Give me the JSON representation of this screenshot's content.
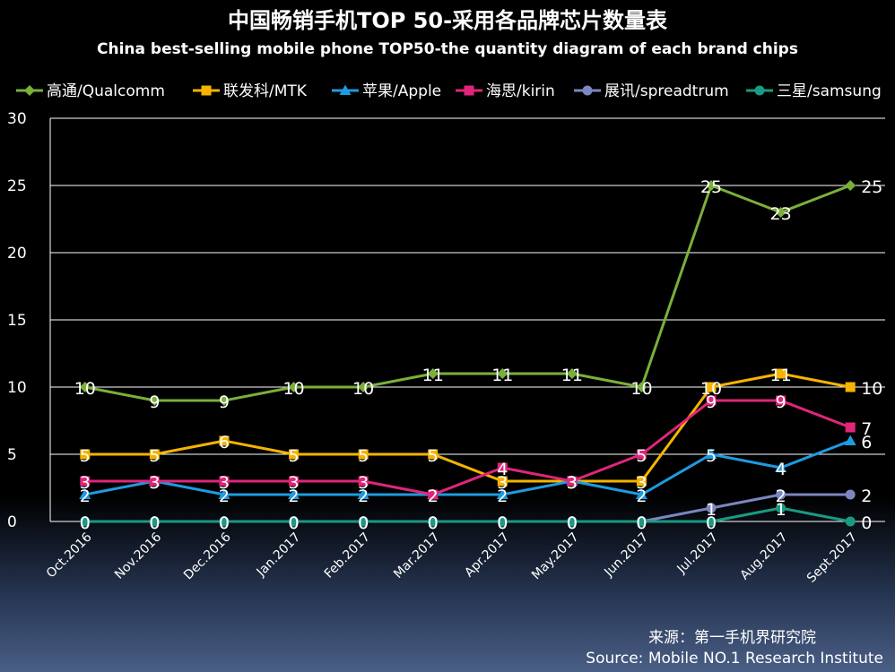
{
  "chart_data": {
    "type": "line",
    "title": "中国畅销手机TOP 50-采用各品牌芯片数量表",
    "subtitle": "China best-selling mobile phone TOP50-the quantity diagram of each brand chips",
    "categories": [
      "Oct.2016",
      "Nov.2016",
      "Dec.2016",
      "Jan.2017",
      "Feb.2017",
      "Mar.2017",
      "Apr.2017",
      "May.2017",
      "Jun.2017",
      "Jul.2017",
      "Aug.2017",
      "Sept.2017"
    ],
    "ylim": [
      0,
      30
    ],
    "yticks": [
      0,
      5,
      10,
      15,
      20,
      25,
      30
    ],
    "grid": true,
    "legend_position": "top",
    "series": [
      {
        "name": "高通/Qualcomm",
        "color": "#7ab03a",
        "marker": "diamond",
        "values": [
          10,
          9,
          9,
          10,
          10,
          11,
          11,
          11,
          10,
          25,
          23,
          25
        ]
      },
      {
        "name": "联发科/MTK",
        "color": "#f5b400",
        "marker": "square",
        "values": [
          5,
          5,
          6,
          5,
          5,
          5,
          3,
          3,
          3,
          10,
          11,
          10
        ]
      },
      {
        "name": "苹果/Apple",
        "color": "#1e9be0",
        "marker": "triangle",
        "values": [
          2,
          3,
          2,
          2,
          2,
          2,
          2,
          3,
          2,
          5,
          4,
          6
        ]
      },
      {
        "name": "海思/kirin",
        "color": "#e0267a",
        "marker": "square",
        "values": [
          3,
          3,
          3,
          3,
          3,
          2,
          4,
          3,
          5,
          9,
          9,
          7
        ]
      },
      {
        "name": "展讯/spreadtrum",
        "color": "#7c86c0",
        "marker": "circle",
        "values": [
          0,
          0,
          0,
          0,
          0,
          0,
          0,
          0,
          0,
          1,
          2,
          2
        ]
      },
      {
        "name": "三星/samsung",
        "color": "#1a9a82",
        "marker": "circle",
        "values": [
          0,
          0,
          0,
          0,
          0,
          0,
          0,
          0,
          0,
          0,
          1,
          0
        ]
      }
    ]
  },
  "source": {
    "cn": "来源：第一手机界研究院",
    "en": "Source: Mobile NO.1 Research Institute"
  }
}
